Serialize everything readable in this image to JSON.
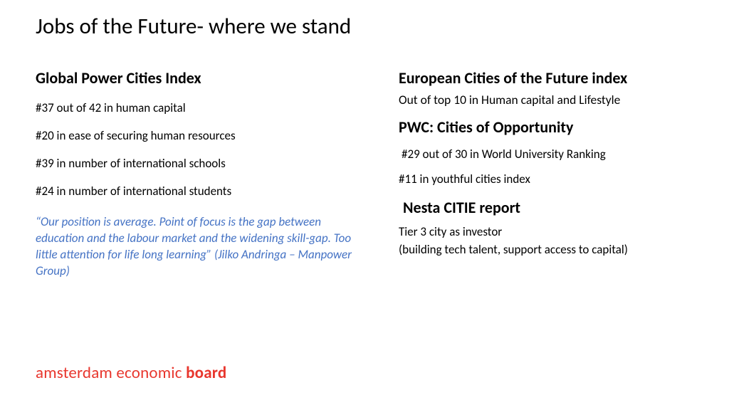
{
  "title": "Jobs of the Future- where we stand",
  "left": {
    "heading": "Global Power Cities Index",
    "items": [
      "#37 out of 42 in human capital",
      "#20 in ease of securing human resources",
      "#39 in number of international schools",
      "#24 in number of international students"
    ],
    "quote": "“Our position is average. Point of focus is the gap between education and the labour market and the widening skill-gap. Too little attention for life long learning” (Jilko Andringa – Manpower Group)"
  },
  "right": {
    "section1": {
      "heading": "European Cities of the Future index",
      "sub": "Out of top 10 in Human capital and Lifestyle"
    },
    "section2": {
      "heading": "PWC: Cities of Opportunity",
      "items": [
        "#29 out of 30 in World University Ranking",
        "#11 in youthful cities index"
      ]
    },
    "section3": {
      "heading": "Nesta CITIE report",
      "line1": "Tier 3 city as investor",
      "line2": "(building tech talent, support access to capital)"
    }
  },
  "logo": {
    "part1": "amsterdam economic ",
    "part2": "board",
    "color": "#e8362d"
  },
  "colors": {
    "quote": "#4472c4",
    "text": "#000000",
    "background": "#ffffff"
  }
}
